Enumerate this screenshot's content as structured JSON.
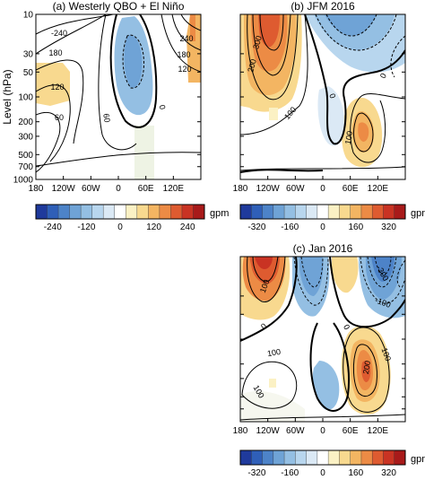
{
  "figure": {
    "ylabel": "Level (hPa)",
    "pressure_ticks": [
      "10",
      "30",
      "50",
      "100",
      "200",
      "300",
      "500",
      "700",
      "1000"
    ],
    "lon_ticks": [
      "180",
      "120W",
      "60W",
      "0",
      "60E",
      "120E"
    ]
  },
  "panels": [
    {
      "title": "(a) Westerly QBO + El Niño",
      "show_y": true,
      "contour_labels": [
        "-240",
        "180",
        "120",
        "60",
        "60",
        "0",
        "240",
        "180",
        "120"
      ],
      "colorbar": {
        "ticks": [
          "-240",
          "-120",
          "0",
          "120",
          "240"
        ],
        "unit": "gpm"
      }
    },
    {
      "title": "(b) JFM 2016",
      "show_y": false,
      "contour_labels": [
        "300",
        "200",
        "100",
        "0",
        "100",
        "0"
      ],
      "colorbar": {
        "ticks": [
          "-320",
          "-160",
          "0",
          "160",
          "320"
        ],
        "unit": "gpm"
      }
    },
    {
      "title": "(c) Jan 2016",
      "show_y": false,
      "contour_labels": [
        "100",
        "0",
        "100",
        "-300",
        "-100",
        "0",
        "100",
        "200",
        "100"
      ],
      "colorbar": {
        "ticks": [
          "-320",
          "-160",
          "0",
          "160",
          "320"
        ],
        "unit": "gpm"
      }
    }
  ],
  "palette": [
    "#1f3a9c",
    "#2f5fb8",
    "#4d83c8",
    "#6fa3d6",
    "#94bfe3",
    "#b8d6ee",
    "#dbe9f5",
    "#ffffff",
    "#fbf1c4",
    "#f8d98f",
    "#f3b562",
    "#ec8b45",
    "#de5b30",
    "#c93323",
    "#a81a1a"
  ],
  "chart_data": [
    {
      "type": "heatmap",
      "title": "(a) Westerly QBO + El Niño",
      "xlabel": "",
      "ylabel": "Level (hPa)",
      "x_ticks": [
        "180",
        "120W",
        "60W",
        "0",
        "60E",
        "120E"
      ],
      "y_ticks": [
        "10",
        "30",
        "50",
        "100",
        "200",
        "300",
        "500",
        "700",
        "1000"
      ],
      "contour_labels": [
        -240,
        180,
        120,
        60,
        60,
        0,
        240,
        180,
        120
      ],
      "colorbar_ticks": [
        -240,
        -120,
        0,
        120,
        240
      ],
      "colorbar_unit": "gpm"
    },
    {
      "type": "heatmap",
      "title": "(b) JFM 2016",
      "xlabel": "",
      "ylabel": "",
      "x_ticks": [
        "180",
        "120W",
        "60W",
        "0",
        "60E",
        "120E"
      ],
      "y_ticks": [
        "10",
        "30",
        "50",
        "100",
        "200",
        "300",
        "500",
        "700",
        "1000"
      ],
      "contour_labels": [
        300,
        200,
        100,
        0,
        100,
        0
      ],
      "colorbar_ticks": [
        -320,
        -160,
        0,
        160,
        320
      ],
      "colorbar_unit": "gpm"
    },
    {
      "type": "heatmap",
      "title": "(c) Jan 2016",
      "xlabel": "",
      "ylabel": "",
      "x_ticks": [
        "180",
        "120W",
        "60W",
        "0",
        "60E",
        "120E"
      ],
      "y_ticks": [
        "10",
        "30",
        "50",
        "100",
        "200",
        "300",
        "500",
        "700",
        "1000"
      ],
      "contour_labels": [
        100,
        0,
        100,
        -300,
        -100,
        0,
        100,
        200,
        100
      ],
      "colorbar_ticks": [
        -320,
        -160,
        0,
        160,
        320
      ],
      "colorbar_unit": "gpm"
    }
  ]
}
